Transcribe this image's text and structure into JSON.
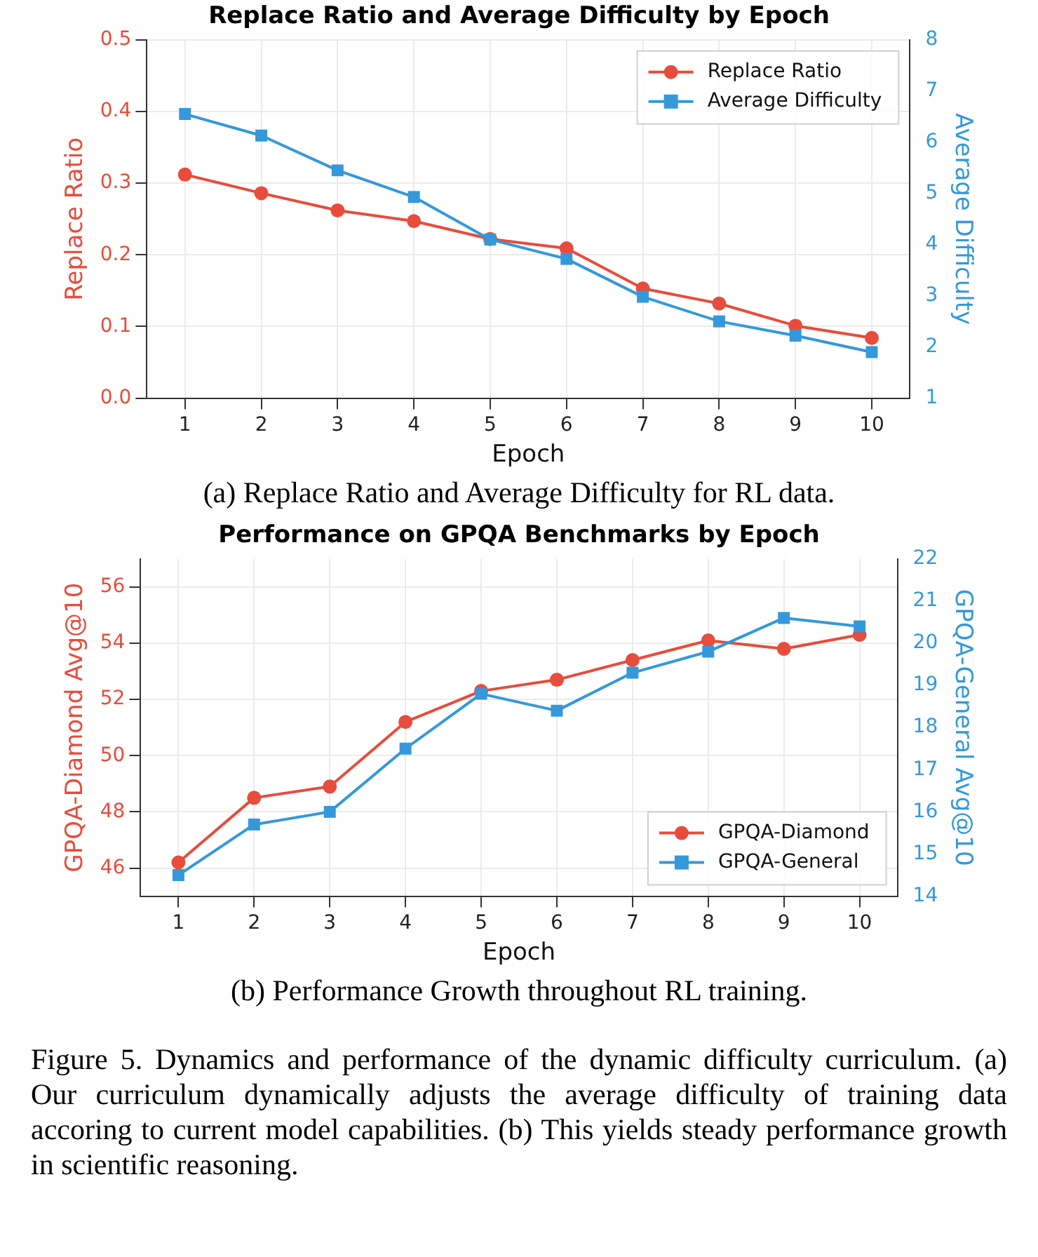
{
  "chart_data": [
    {
      "type": "line",
      "title": "Replace Ratio and Average Difficulty by Epoch",
      "xlabel": "Epoch",
      "ylabel": "Replace Ratio",
      "y2label": "Average Difficulty",
      "categories": [
        "1",
        "2",
        "3",
        "4",
        "5",
        "6",
        "7",
        "8",
        "9",
        "10"
      ],
      "series": [
        {
          "name": "Replace Ratio",
          "color": "#e74c3c",
          "marker": "circle",
          "values": [
            0.312,
            0.286,
            0.262,
            0.247,
            0.222,
            0.209,
            0.153,
            0.132,
            0.101,
            0.084
          ]
        },
        {
          "name": "Average Difficulty",
          "color": "#3498db",
          "marker": "square",
          "axis": "y2",
          "values": [
            6.55,
            6.13,
            5.45,
            4.93,
            4.1,
            3.72,
            2.98,
            2.5,
            2.22,
            1.9
          ]
        }
      ],
      "ylim": [
        0,
        0.5
      ],
      "yticks": [
        {
          "value": 0,
          "label": "0.0"
        },
        0.1,
        0.2,
        0.3,
        0.4,
        0.5
      ],
      "y2lim": [
        1,
        8
      ],
      "y2ticks": [
        1,
        2,
        3,
        4,
        5,
        6,
        7,
        8
      ],
      "grid": true,
      "legend": "top right",
      "line_style": "solid",
      "annotations": [
        "(a) Replace Ratio and Average Difficulty for RL data."
      ]
    },
    {
      "type": "line",
      "title": "Performance on GPQA Benchmarks by Epoch",
      "xlabel": "Epoch",
      "ylabel": "GPQA-Diamond Avg@10",
      "y2label": "GPQA-General Avg@10",
      "categories": [
        "1",
        "2",
        "3",
        "4",
        "5",
        "6",
        "7",
        "8",
        "9",
        "10"
      ],
      "series": [
        {
          "name": "GPQA-Diamond",
          "color": "#e74c3c",
          "marker": "circle",
          "values": [
            46.2,
            48.5,
            48.9,
            51.2,
            52.3,
            52.7,
            53.4,
            54.1,
            53.8,
            54.3
          ]
        },
        {
          "name": "GPQA-General",
          "color": "#3498db",
          "marker": "square",
          "axis": "y2",
          "values": [
            14.5,
            15.7,
            16.0,
            17.5,
            18.8,
            18.4,
            19.3,
            19.8,
            20.6,
            20.4
          ]
        }
      ],
      "ylim": [
        45,
        57
      ],
      "yticks": [
        46,
        48,
        50,
        52,
        54,
        56
      ],
      "y2lim": [
        14,
        22
      ],
      "y2ticks": [
        14,
        15,
        16,
        17,
        18,
        19,
        20,
        21,
        22
      ],
      "grid": true,
      "legend": "bottom right",
      "line_style": "solid",
      "annotations": [
        "(b) Performance Growth throughout RL training.",
        "Figure 5. Dynamics and performance of the dynamic difficulty curriculum. (a) Our curriculum dynamically adjusts the average difficulty of training data accoring to current model capabilities. (b) This yields steady performance growth in scientific reasoning."
      ]
    }
  ]
}
